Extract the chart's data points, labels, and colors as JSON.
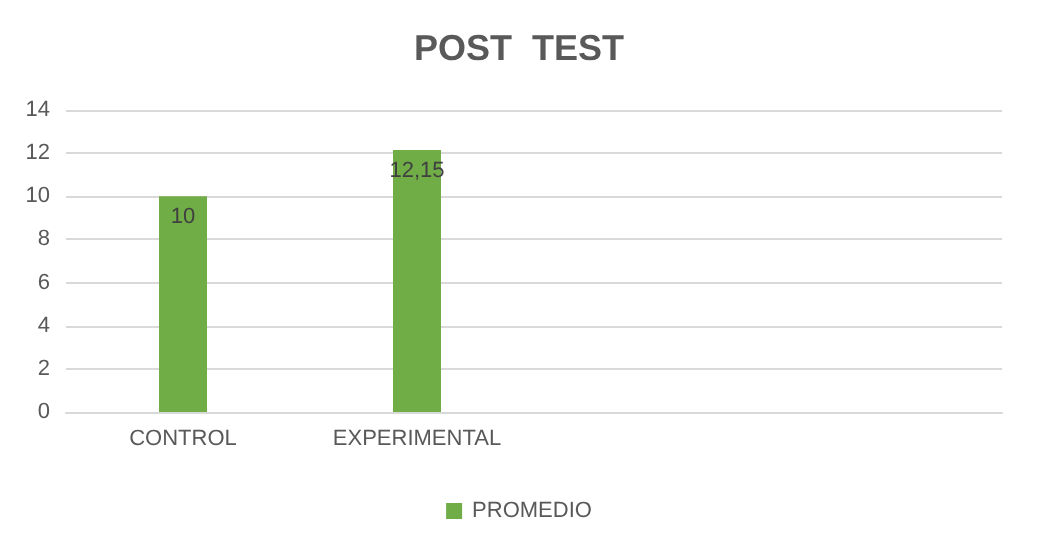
{
  "chart_data": {
    "type": "bar",
    "title": "POST  TEST",
    "categories": [
      "CONTROL",
      "EXPERIMENTAL",
      null,
      null
    ],
    "series": [
      {
        "name": "PROMEDIO",
        "color": "#70ad47",
        "values": [
          10,
          12.15,
          null,
          null
        ],
        "value_labels": [
          "10",
          "12,15",
          null,
          null
        ]
      }
    ],
    "ylim": [
      0,
      14
    ],
    "yticks": [
      0,
      2,
      4,
      6,
      8,
      10,
      12,
      14
    ],
    "grid": "y",
    "legend": "bottom"
  }
}
